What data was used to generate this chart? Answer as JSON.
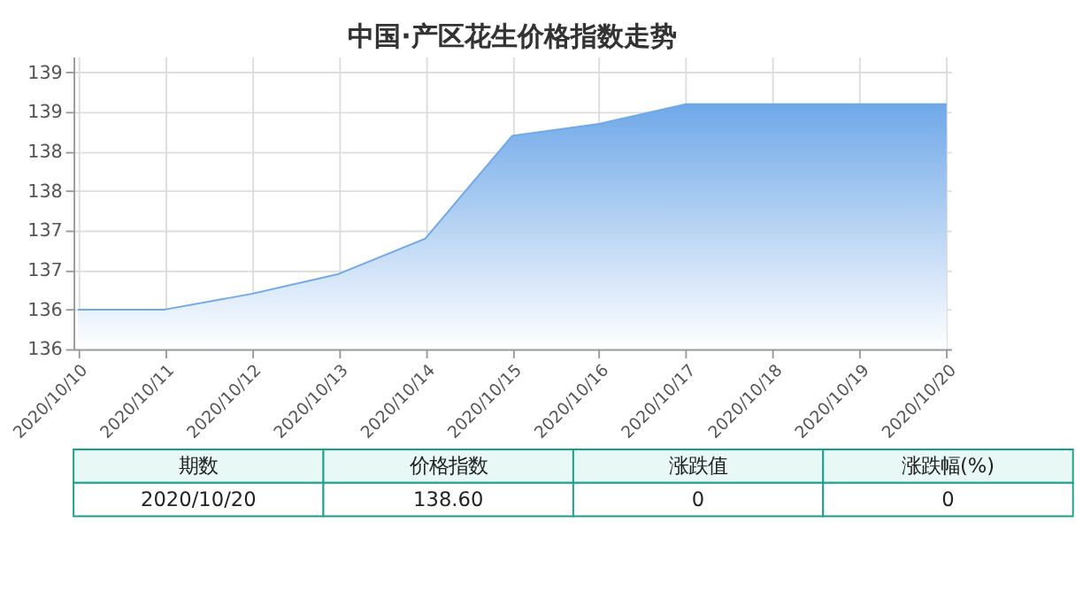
{
  "chart_data": {
    "type": "area",
    "title": "中国·产区花生价格指数走势",
    "categories": [
      "2020/10/10",
      "2020/10/11",
      "2020/10/12",
      "2020/10/13",
      "2020/10/14",
      "2020/10/15",
      "2020/10/16",
      "2020/10/17",
      "2020/10/18",
      "2020/10/19",
      "2020/10/20"
    ],
    "series": [
      {
        "color": "#6fa8e8",
        "values": [
          136.0,
          136.0,
          136.2,
          136.45,
          136.9,
          138.2,
          138.35,
          138.6,
          138.6,
          138.6,
          138.6
        ]
      }
    ],
    "ylim": [
      135.5,
      139.2
    ],
    "yticks": [
      {
        "value": 135.5,
        "label": "136"
      },
      {
        "value": 136.0,
        "label": "136"
      },
      {
        "value": 136.5,
        "label": "137"
      },
      {
        "value": 137.0,
        "label": "137"
      },
      {
        "value": 137.5,
        "label": "138"
      },
      {
        "value": 138.0,
        "label": "138"
      },
      {
        "value": 138.5,
        "label": "139"
      },
      {
        "value": 139.0,
        "label": "139"
      }
    ],
    "grid": true,
    "marker": "none",
    "legend": false,
    "annotations": [
      "期数",
      "价格指数",
      "涨跌值",
      "涨跌幅(%)",
      "2020/10/20",
      "138.60",
      "0",
      "0"
    ]
  }
}
